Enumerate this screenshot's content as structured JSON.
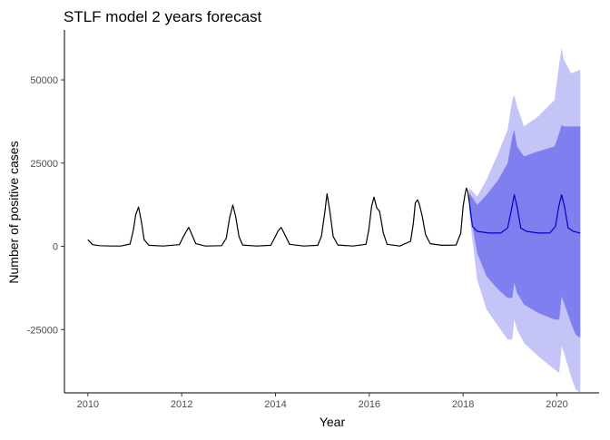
{
  "chart_data": {
    "type": "line",
    "title": "STLF model 2 years forecast",
    "xlabel": "Year",
    "ylabel": "Number of positive cases",
    "xlim": [
      2009.5,
      2020.9
    ],
    "ylim": [
      -44000,
      65000
    ],
    "x_ticks": [
      2010,
      2012,
      2014,
      2016,
      2018,
      2020
    ],
    "x_tick_labels": [
      "2010",
      "2012",
      "2014",
      "2016",
      "2018",
      "2020"
    ],
    "y_ticks": [
      -25000,
      0,
      25000,
      50000
    ],
    "y_tick_labels": [
      "-25000",
      "0",
      "25000",
      "50000"
    ],
    "grid": false,
    "colors": {
      "history": "#000000",
      "forecast": "#0000cc",
      "band80": "#7f7fef",
      "band95": "#c4c4f6"
    },
    "series": [
      {
        "role": "history",
        "points": [
          [
            2010.0,
            2000
          ],
          [
            2010.1,
            500
          ],
          [
            2010.25,
            200
          ],
          [
            2010.5,
            100
          ],
          [
            2010.7,
            100
          ],
          [
            2010.9,
            700
          ],
          [
            2010.97,
            5000
          ],
          [
            2011.02,
            9500
          ],
          [
            2011.08,
            11800
          ],
          [
            2011.14,
            7500
          ],
          [
            2011.2,
            2000
          ],
          [
            2011.3,
            300
          ],
          [
            2011.6,
            100
          ],
          [
            2011.95,
            500
          ],
          [
            2012.02,
            2500
          ],
          [
            2012.1,
            4500
          ],
          [
            2012.15,
            5700
          ],
          [
            2012.22,
            3500
          ],
          [
            2012.3,
            800
          ],
          [
            2012.5,
            100
          ],
          [
            2012.85,
            200
          ],
          [
            2012.95,
            2500
          ],
          [
            2013.02,
            8500
          ],
          [
            2013.09,
            12400
          ],
          [
            2013.15,
            9000
          ],
          [
            2013.22,
            3000
          ],
          [
            2013.3,
            400
          ],
          [
            2013.6,
            100
          ],
          [
            2013.9,
            300
          ],
          [
            2013.98,
            2500
          ],
          [
            2014.05,
            4500
          ],
          [
            2014.12,
            5700
          ],
          [
            2014.2,
            3500
          ],
          [
            2014.3,
            600
          ],
          [
            2014.6,
            100
          ],
          [
            2014.9,
            300
          ],
          [
            2014.98,
            3000
          ],
          [
            2015.05,
            10000
          ],
          [
            2015.1,
            15800
          ],
          [
            2015.16,
            10500
          ],
          [
            2015.23,
            3000
          ],
          [
            2015.33,
            400
          ],
          [
            2015.65,
            100
          ],
          [
            2015.93,
            600
          ],
          [
            2015.99,
            5000
          ],
          [
            2016.05,
            12000
          ],
          [
            2016.1,
            14800
          ],
          [
            2016.16,
            11500
          ],
          [
            2016.22,
            10500
          ],
          [
            2016.3,
            4000
          ],
          [
            2016.38,
            600
          ],
          [
            2016.65,
            100
          ],
          [
            2016.88,
            1500
          ],
          [
            2016.94,
            7000
          ],
          [
            2016.98,
            13000
          ],
          [
            2017.03,
            14000
          ],
          [
            2017.07,
            12500
          ],
          [
            2017.13,
            9000
          ],
          [
            2017.2,
            3500
          ],
          [
            2017.3,
            800
          ],
          [
            2017.55,
            300
          ],
          [
            2017.85,
            400
          ],
          [
            2017.95,
            4000
          ],
          [
            2018.0,
            12000
          ],
          [
            2018.04,
            15500
          ],
          [
            2018.07,
            17500
          ],
          [
            2018.1,
            16500
          ],
          [
            2018.13,
            13500
          ]
        ]
      },
      {
        "role": "forecast",
        "points": [
          [
            2018.13,
            13500
          ],
          [
            2018.2,
            6000
          ],
          [
            2018.3,
            4500
          ],
          [
            2018.55,
            4000
          ],
          [
            2018.8,
            4000
          ],
          [
            2018.95,
            5500
          ],
          [
            2019.03,
            11000
          ],
          [
            2019.09,
            15500
          ],
          [
            2019.15,
            12000
          ],
          [
            2019.23,
            5500
          ],
          [
            2019.35,
            4500
          ],
          [
            2019.6,
            4000
          ],
          [
            2019.85,
            4000
          ],
          [
            2019.97,
            6000
          ],
          [
            2020.04,
            12000
          ],
          [
            2020.1,
            15500
          ],
          [
            2020.16,
            12000
          ],
          [
            2020.24,
            5500
          ],
          [
            2020.35,
            4500
          ],
          [
            2020.5,
            4000
          ]
        ]
      }
    ],
    "intervals": [
      {
        "level": "95",
        "x": [
          2018.13,
          2018.3,
          2018.5,
          2018.75,
          2018.95,
          2019.05,
          2019.09,
          2019.15,
          2019.3,
          2019.6,
          2019.95,
          2020.05,
          2020.1,
          2020.15,
          2020.3,
          2020.4,
          2020.5
        ],
        "upper": [
          17500,
          15000,
          20000,
          28000,
          35000,
          44000,
          45500,
          42000,
          36000,
          39000,
          44000,
          55000,
          59500,
          56000,
          52000,
          52500,
          53000
        ],
        "lower": [
          10000,
          -10000,
          -19000,
          -24000,
          -28000,
          -28000,
          -22000,
          -25000,
          -29000,
          -33000,
          -37000,
          -38000,
          -30000,
          -32000,
          -39000,
          -43000,
          -44000
        ]
      },
      {
        "level": "80",
        "x": [
          2018.13,
          2018.3,
          2018.5,
          2018.75,
          2018.95,
          2019.05,
          2019.09,
          2019.15,
          2019.3,
          2019.6,
          2019.95,
          2020.05,
          2020.1,
          2020.15,
          2020.3,
          2020.4,
          2020.5
        ],
        "upper": [
          16000,
          12500,
          15500,
          20000,
          25000,
          33000,
          35000,
          30000,
          27000,
          28500,
          30000,
          34000,
          36500,
          36000,
          36000,
          36000,
          36000
        ],
        "lower": [
          11500,
          -2000,
          -9000,
          -13000,
          -15500,
          -15500,
          -11000,
          -14000,
          -17500,
          -20000,
          -22000,
          -22000,
          -15000,
          -17000,
          -23000,
          -26500,
          -27500
        ]
      }
    ]
  }
}
